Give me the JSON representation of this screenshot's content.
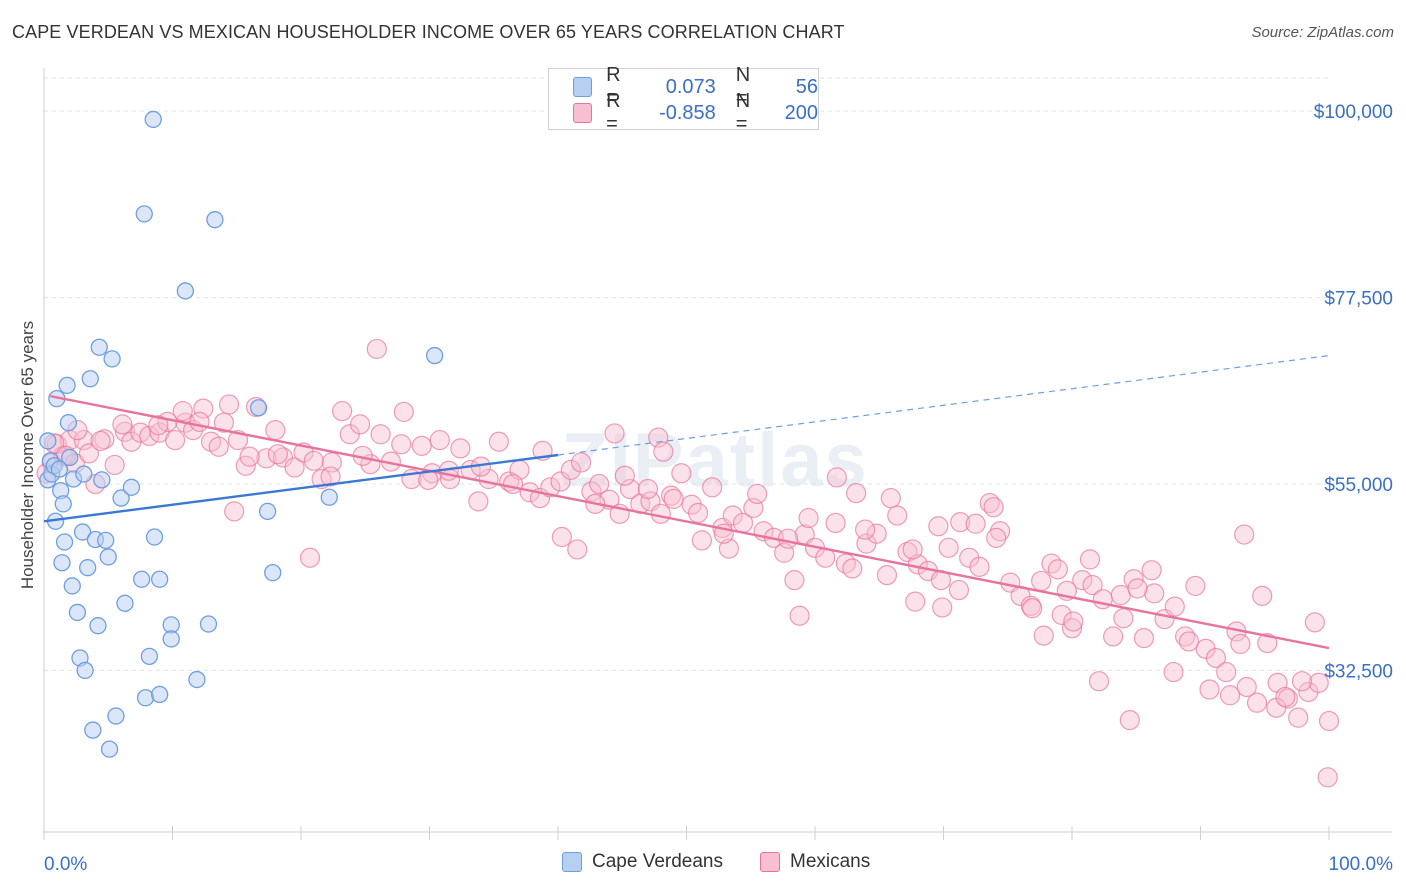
{
  "header": {
    "title": "CAPE VERDEAN VS MEXICAN HOUSEHOLDER INCOME OVER 65 YEARS CORRELATION CHART",
    "source": "Source: ZipAtlas.com"
  },
  "colors": {
    "blue": "#6f9ee0",
    "blue_fill": "#b7d0f2",
    "pink": "#e8739c",
    "pink_fill": "#f7bfd1",
    "axis_text": "#3a6fc4"
  },
  "legend": {
    "rows": [
      {
        "r_label": "R =",
        "r_value": "0.073",
        "n_label": "N =",
        "n_value": "56"
      },
      {
        "r_label": "R =",
        "r_value": "-0.858",
        "n_label": "N =",
        "n_value": "200"
      }
    ]
  },
  "bottom_legend": [
    "Cape Verdeans",
    "Mexicans"
  ],
  "chart_data": {
    "type": "scatter",
    "title": "CAPE VERDEAN VS MEXICAN HOUSEHOLDER INCOME OVER 65 YEARS CORRELATION CHART",
    "xlabel": "",
    "ylabel": "Householder Income Over 65 years",
    "xlim": [
      0,
      100
    ],
    "ylim": [
      13000,
      104000
    ],
    "x_tick_labels": [
      "0.0%",
      "100.0%"
    ],
    "y_ticks": [
      32500,
      55000,
      77500,
      100000
    ],
    "y_tick_labels": [
      "$32,500",
      "$55,000",
      "$77,500",
      "$100,000"
    ],
    "grid": true,
    "legend_position": "top-center",
    "watermark": "ZIPatlas",
    "series": [
      {
        "name": "Cape Verdeans",
        "color": "#6f9ee0",
        "R": 0.073,
        "N": 56,
        "trend": {
          "x": [
            0,
            40
          ],
          "y": [
            50500,
            58500
          ]
        },
        "trend_extension": {
          "x": [
            40,
            100
          ],
          "y": [
            58500,
            70500
          ]
        },
        "points": [
          [
            0.3,
            60200
          ],
          [
            0.3,
            55500
          ],
          [
            0.5,
            57800
          ],
          [
            0.6,
            56200
          ],
          [
            0.8,
            57200
          ],
          [
            0.9,
            50500
          ],
          [
            1.0,
            65300
          ],
          [
            1.2,
            56800
          ],
          [
            1.3,
            54200
          ],
          [
            1.4,
            45500
          ],
          [
            1.5,
            52600
          ],
          [
            1.6,
            48000
          ],
          [
            1.8,
            66900
          ],
          [
            1.9,
            62400
          ],
          [
            2.0,
            58200
          ],
          [
            2.2,
            42700
          ],
          [
            2.3,
            55600
          ],
          [
            2.6,
            39500
          ],
          [
            2.8,
            34000
          ],
          [
            3.0,
            49200
          ],
          [
            3.1,
            56200
          ],
          [
            3.2,
            32500
          ],
          [
            3.4,
            44900
          ],
          [
            3.6,
            67700
          ],
          [
            3.8,
            25300
          ],
          [
            4.0,
            48300
          ],
          [
            4.2,
            37900
          ],
          [
            4.3,
            71500
          ],
          [
            4.5,
            55500
          ],
          [
            4.8,
            48200
          ],
          [
            5.0,
            46200
          ],
          [
            5.3,
            70100
          ],
          [
            5.6,
            27000
          ],
          [
            6.0,
            53300
          ],
          [
            6.3,
            40600
          ],
          [
            6.8,
            54600
          ],
          [
            5.1,
            23000
          ],
          [
            7.6,
            43500
          ],
          [
            7.8,
            87600
          ],
          [
            7.9,
            29200
          ],
          [
            8.2,
            34200
          ],
          [
            8.5,
            99000
          ],
          [
            8.6,
            48600
          ],
          [
            9.0,
            29600
          ],
          [
            9.0,
            43500
          ],
          [
            9.9,
            38000
          ],
          [
            9.9,
            36300
          ],
          [
            11.0,
            78300
          ],
          [
            11.9,
            31400
          ],
          [
            12.8,
            38100
          ],
          [
            13.3,
            86900
          ],
          [
            16.7,
            64200
          ],
          [
            17.4,
            51700
          ],
          [
            17.8,
            44300
          ],
          [
            22.2,
            53400
          ],
          [
            30.4,
            70500
          ]
        ]
      },
      {
        "name": "Mexicans",
        "color": "#e8739c",
        "R": -0.858,
        "N": 200,
        "trend": {
          "x": [
            0.5,
            100
          ],
          "y": [
            65600,
            35200
          ]
        },
        "points": [
          [
            0.6,
            57500
          ],
          [
            1.0,
            59800
          ],
          [
            1.5,
            58400
          ],
          [
            2.0,
            60300
          ],
          [
            2.4,
            57500
          ],
          [
            3.1,
            60300
          ],
          [
            3.5,
            58700
          ],
          [
            4.0,
            55000
          ],
          [
            4.7,
            60400
          ],
          [
            5.5,
            57300
          ],
          [
            6.3,
            61300
          ],
          [
            6.8,
            60100
          ],
          [
            7.5,
            61200
          ],
          [
            8.2,
            60800
          ],
          [
            9.0,
            61200
          ],
          [
            9.6,
            62500
          ],
          [
            10.2,
            60300
          ],
          [
            11.0,
            62400
          ],
          [
            11.6,
            61500
          ],
          [
            12.4,
            64100
          ],
          [
            13.0,
            60100
          ],
          [
            13.6,
            59500
          ],
          [
            14.4,
            64600
          ],
          [
            15.1,
            60300
          ],
          [
            15.7,
            57200
          ],
          [
            16.5,
            64300
          ],
          [
            17.3,
            58100
          ],
          [
            18.0,
            61500
          ],
          [
            18.6,
            58200
          ],
          [
            19.5,
            57000
          ],
          [
            20.2,
            58800
          ],
          [
            21.0,
            57800
          ],
          [
            21.6,
            55600
          ],
          [
            22.4,
            57600
          ],
          [
            23.2,
            63800
          ],
          [
            23.8,
            61000
          ],
          [
            24.6,
            62200
          ],
          [
            25.4,
            57400
          ],
          [
            26.2,
            61000
          ],
          [
            27.0,
            57700
          ],
          [
            27.8,
            59800
          ],
          [
            28.6,
            55600
          ],
          [
            29.4,
            59600
          ],
          [
            30.2,
            56300
          ],
          [
            30.8,
            60300
          ],
          [
            31.6,
            55600
          ],
          [
            32.4,
            59300
          ],
          [
            33.2,
            56700
          ],
          [
            33.8,
            52900
          ],
          [
            34.6,
            55600
          ],
          [
            35.4,
            60100
          ],
          [
            36.2,
            55300
          ],
          [
            37.0,
            56700
          ],
          [
            37.8,
            54000
          ],
          [
            38.6,
            53300
          ],
          [
            39.4,
            54600
          ],
          [
            40.2,
            55300
          ],
          [
            41.0,
            56700
          ],
          [
            41.8,
            57600
          ],
          [
            42.6,
            54100
          ],
          [
            43.2,
            55000
          ],
          [
            44.0,
            53100
          ],
          [
            44.8,
            51400
          ],
          [
            45.6,
            54400
          ],
          [
            46.4,
            52600
          ],
          [
            47.2,
            52900
          ],
          [
            48.0,
            51400
          ],
          [
            48.8,
            53600
          ],
          [
            49.6,
            56300
          ],
          [
            50.4,
            52500
          ],
          [
            51.2,
            48200
          ],
          [
            52.0,
            54600
          ],
          [
            52.8,
            49700
          ],
          [
            53.6,
            51200
          ],
          [
            54.4,
            50300
          ],
          [
            55.2,
            52100
          ],
          [
            56.0,
            49300
          ],
          [
            56.8,
            48500
          ],
          [
            57.6,
            46700
          ],
          [
            58.4,
            43400
          ],
          [
            59.2,
            48900
          ],
          [
            60.0,
            47300
          ],
          [
            60.8,
            46100
          ],
          [
            61.6,
            50300
          ],
          [
            62.4,
            45400
          ],
          [
            63.2,
            53900
          ],
          [
            64.0,
            47800
          ],
          [
            64.8,
            49000
          ],
          [
            65.6,
            44000
          ],
          [
            66.4,
            51200
          ],
          [
            67.2,
            46800
          ],
          [
            68.0,
            45300
          ],
          [
            68.8,
            44500
          ],
          [
            69.6,
            49900
          ],
          [
            70.4,
            47300
          ],
          [
            71.2,
            42200
          ],
          [
            72.0,
            46100
          ],
          [
            72.8,
            45000
          ],
          [
            73.6,
            52700
          ],
          [
            74.4,
            49300
          ],
          [
            75.2,
            43100
          ],
          [
            76.0,
            41500
          ],
          [
            76.8,
            40300
          ],
          [
            77.6,
            43300
          ],
          [
            78.4,
            45400
          ],
          [
            79.2,
            39200
          ],
          [
            80.0,
            37600
          ],
          [
            80.8,
            43400
          ],
          [
            81.6,
            42800
          ],
          [
            82.4,
            41100
          ],
          [
            83.2,
            36600
          ],
          [
            84.0,
            38800
          ],
          [
            84.8,
            43500
          ],
          [
            85.6,
            36400
          ],
          [
            86.4,
            41800
          ],
          [
            87.2,
            38700
          ],
          [
            88.0,
            40200
          ],
          [
            88.8,
            36600
          ],
          [
            89.6,
            42700
          ],
          [
            90.4,
            35100
          ],
          [
            91.2,
            34000
          ],
          [
            92.0,
            32300
          ],
          [
            92.8,
            37200
          ],
          [
            93.6,
            30500
          ],
          [
            94.4,
            28600
          ],
          [
            95.2,
            35800
          ],
          [
            96.0,
            31000
          ],
          [
            96.8,
            29100
          ],
          [
            97.6,
            26800
          ],
          [
            98.4,
            29900
          ],
          [
            99.2,
            31000
          ],
          [
            100.0,
            26400
          ],
          [
            0.8,
            59900
          ],
          [
            2.6,
            61500
          ],
          [
            4.4,
            60200
          ],
          [
            6.1,
            62200
          ],
          [
            8.9,
            62100
          ],
          [
            10.8,
            63800
          ],
          [
            12.1,
            62500
          ],
          [
            14.0,
            62400
          ],
          [
            16.0,
            58300
          ],
          [
            18.2,
            58600
          ],
          [
            20.7,
            46100
          ],
          [
            22.3,
            55900
          ],
          [
            24.8,
            58400
          ],
          [
            25.9,
            71300
          ],
          [
            28.0,
            63700
          ],
          [
            29.9,
            55500
          ],
          [
            31.5,
            56600
          ],
          [
            34.0,
            57100
          ],
          [
            36.5,
            55000
          ],
          [
            38.8,
            59000
          ],
          [
            40.3,
            48600
          ],
          [
            41.5,
            47100
          ],
          [
            42.9,
            52600
          ],
          [
            45.2,
            56000
          ],
          [
            47.0,
            54400
          ],
          [
            47.8,
            60600
          ],
          [
            49.0,
            53200
          ],
          [
            50.9,
            51500
          ],
          [
            53.3,
            47200
          ],
          [
            55.5,
            53800
          ],
          [
            57.9,
            48400
          ],
          [
            59.5,
            50900
          ],
          [
            61.7,
            55800
          ],
          [
            63.9,
            49500
          ],
          [
            65.9,
            53300
          ],
          [
            67.6,
            47100
          ],
          [
            69.9,
            40100
          ],
          [
            71.3,
            50400
          ],
          [
            72.5,
            50200
          ],
          [
            74.1,
            48500
          ],
          [
            76.9,
            40000
          ],
          [
            78.9,
            44700
          ],
          [
            80.1,
            38400
          ],
          [
            81.4,
            45900
          ],
          [
            82.1,
            31200
          ],
          [
            83.8,
            41600
          ],
          [
            84.5,
            26500
          ],
          [
            86.2,
            44600
          ],
          [
            87.9,
            32300
          ],
          [
            89.1,
            36000
          ],
          [
            90.7,
            30200
          ],
          [
            92.3,
            29500
          ],
          [
            93.1,
            35700
          ],
          [
            94.8,
            41500
          ],
          [
            95.9,
            28000
          ],
          [
            96.6,
            29300
          ],
          [
            97.9,
            31200
          ],
          [
            98.9,
            38300
          ],
          [
            99.9,
            19600
          ],
          [
            44.4,
            61100
          ],
          [
            48.2,
            58900
          ],
          [
            52.9,
            49000
          ],
          [
            58.8,
            39100
          ],
          [
            62.9,
            44800
          ],
          [
            67.8,
            40800
          ],
          [
            69.8,
            43400
          ],
          [
            73.9,
            52200
          ],
          [
            77.8,
            36700
          ],
          [
            79.6,
            42100
          ],
          [
            85.1,
            42400
          ],
          [
            93.4,
            48900
          ],
          [
            0.2,
            56300
          ],
          [
            1.7,
            58400
          ],
          [
            14.8,
            51700
          ]
        ]
      }
    ]
  }
}
